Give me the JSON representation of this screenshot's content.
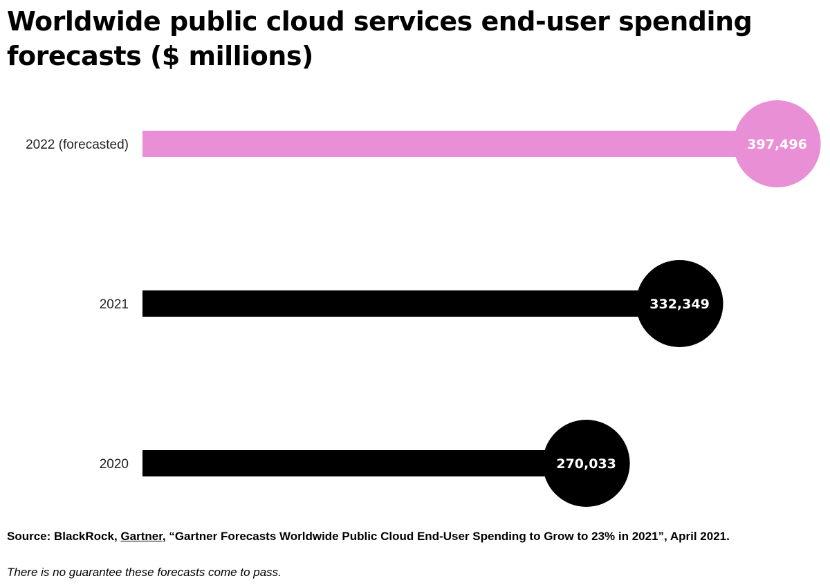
{
  "chart_data": {
    "type": "bar",
    "orientation": "horizontal",
    "title": "Worldwide public cloud services end-user spending forecasts ($ millions)",
    "categories": [
      "2022 (forecasted)",
      "2021",
      "2020"
    ],
    "values": [
      397496,
      332349,
      270033
    ],
    "data_labels": [
      "397,496",
      "332,349",
      "270,033"
    ],
    "colors": [
      "#e88fd6",
      "#000000",
      "#000000"
    ],
    "label_color": "#ffffff",
    "grid": false,
    "xlabel": "",
    "ylabel": ""
  },
  "footer": {
    "source_prefix": "Source: BlackRock, ",
    "source_link": "Gartner",
    "source_rest": ", “Gartner Forecasts Worldwide Public Cloud End-User Spending to Grow to 23% in 2021”, April 2021.",
    "note": "There is no guarantee these forecasts come to pass."
  }
}
